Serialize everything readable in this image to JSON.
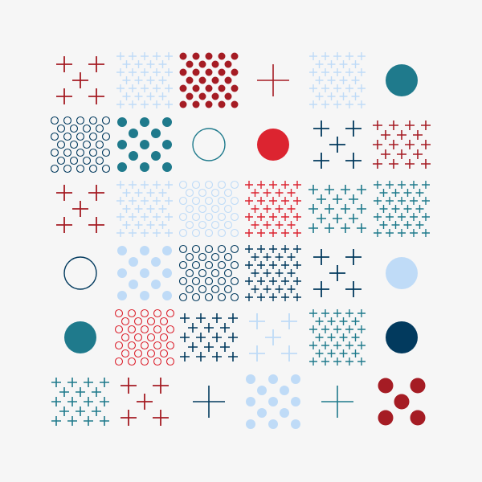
{
  "colors": {
    "background": "#f6f6f6",
    "crimson": "#a51c24",
    "red": "#dc2430",
    "teal": "#1f7a8c",
    "navy": "#023a5e",
    "light_blue": "#bfdbf7"
  },
  "grid": {
    "rows": 6,
    "cols": 6,
    "tiles": [
      {
        "pattern": "plus-quincunx",
        "color": "crimson"
      },
      {
        "pattern": "plus-dense",
        "color": "light_blue"
      },
      {
        "pattern": "dot-dense",
        "color": "crimson"
      },
      {
        "pattern": "plus-single",
        "color": "crimson"
      },
      {
        "pattern": "plus-dense",
        "color": "light_blue"
      },
      {
        "pattern": "dot-single",
        "color": "teal"
      },
      {
        "pattern": "ring-dense",
        "color": "navy"
      },
      {
        "pattern": "dot-medium",
        "color": "teal"
      },
      {
        "pattern": "ring-single",
        "color": "teal"
      },
      {
        "pattern": "dot-single",
        "color": "red"
      },
      {
        "pattern": "plus-quincunx",
        "color": "navy"
      },
      {
        "pattern": "plus-medium",
        "color": "crimson"
      },
      {
        "pattern": "plus-quincunx",
        "color": "crimson"
      },
      {
        "pattern": "plus-dense",
        "color": "light_blue"
      },
      {
        "pattern": "ring-dense",
        "color": "light_blue"
      },
      {
        "pattern": "plus-dense",
        "color": "red"
      },
      {
        "pattern": "plus-medium",
        "color": "teal"
      },
      {
        "pattern": "plus-dense",
        "color": "teal"
      },
      {
        "pattern": "ring-single",
        "color": "navy"
      },
      {
        "pattern": "dot-medium",
        "color": "light_blue"
      },
      {
        "pattern": "ring-dense",
        "color": "navy"
      },
      {
        "pattern": "plus-dense",
        "color": "navy"
      },
      {
        "pattern": "plus-quincunx",
        "color": "navy"
      },
      {
        "pattern": "dot-single",
        "color": "light_blue"
      },
      {
        "pattern": "dot-single",
        "color": "teal"
      },
      {
        "pattern": "ring-dense",
        "color": "red"
      },
      {
        "pattern": "plus-medium",
        "color": "navy"
      },
      {
        "pattern": "plus-quincunx",
        "color": "light_blue"
      },
      {
        "pattern": "plus-dense",
        "color": "teal"
      },
      {
        "pattern": "dot-single",
        "color": "navy"
      },
      {
        "pattern": "plus-medium",
        "color": "teal"
      },
      {
        "pattern": "plus-quincunx",
        "color": "crimson"
      },
      {
        "pattern": "plus-single",
        "color": "navy"
      },
      {
        "pattern": "dot-medium",
        "color": "light_blue"
      },
      {
        "pattern": "plus-single",
        "color": "teal"
      },
      {
        "pattern": "dot-quincunx",
        "color": "crimson"
      }
    ]
  }
}
